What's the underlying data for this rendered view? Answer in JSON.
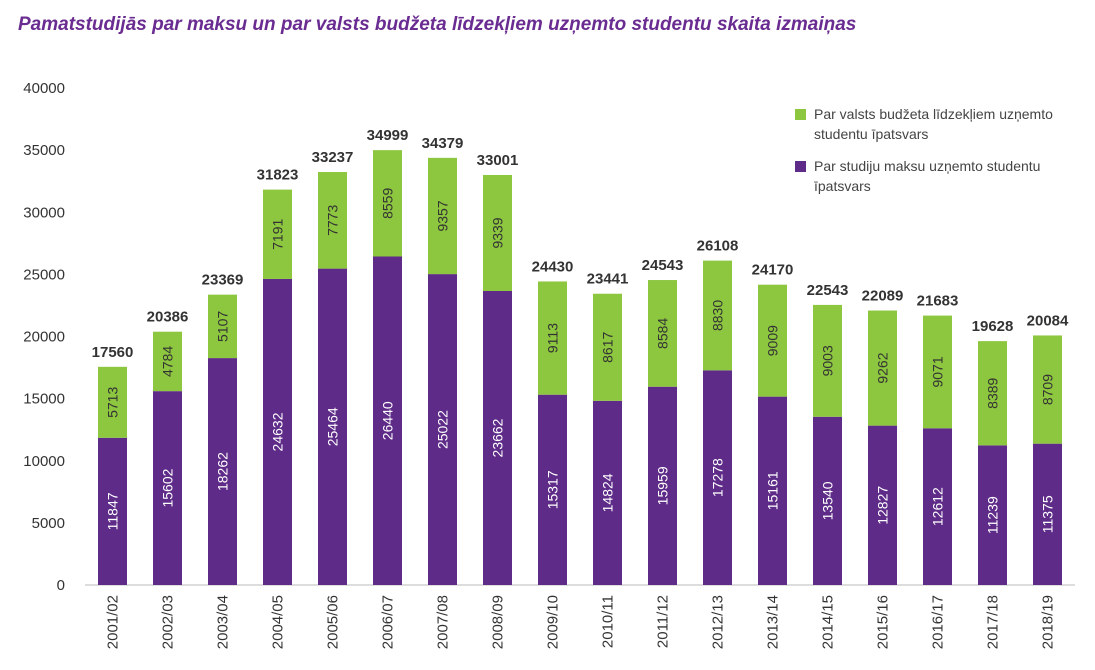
{
  "chart_data": {
    "type": "stacked_bar",
    "title": "Pamatstudijās par maksu un par valsts budžeta līdzekļiem uzņemto studentu skaita izmaiņas",
    "categories": [
      "2001/02",
      "2002/03",
      "2003/04",
      "2004/05",
      "2005/06",
      "2006/07",
      "2007/08",
      "2008/09",
      "2009/10",
      "2010/11",
      "2011/12",
      "2012/13",
      "2013/14",
      "2014/15",
      "2015/16",
      "2016/17",
      "2017/18",
      "2018/19"
    ],
    "series": [
      {
        "name": "Par studiju maksu uzņemto studentu īpatsvars",
        "color": "#5e2b88",
        "values": [
          11847,
          15602,
          18262,
          24632,
          25464,
          26440,
          25022,
          23662,
          15317,
          14824,
          15959,
          17278,
          15161,
          13540,
          12827,
          12612,
          11239,
          11375
        ]
      },
      {
        "name": "Par valsts budžeta līdzekļiem uzņemto studentu īpatsvars",
        "color": "#8dc63f",
        "values": [
          5713,
          4784,
          5107,
          7191,
          7773,
          8559,
          9357,
          9339,
          9113,
          8617,
          8584,
          8830,
          9009,
          9003,
          9262,
          9071,
          8389,
          8709
        ]
      }
    ],
    "totals": [
      17560,
      20386,
      23369,
      31823,
      33237,
      34999,
      34379,
      33001,
      24430,
      23441,
      24543,
      26108,
      24170,
      22543,
      22089,
      21683,
      19628,
      20084
    ],
    "ylim": [
      0,
      40000
    ],
    "yticks": [
      0,
      5000,
      10000,
      15000,
      20000,
      25000,
      30000,
      35000,
      40000
    ],
    "legend": "top-right"
  }
}
